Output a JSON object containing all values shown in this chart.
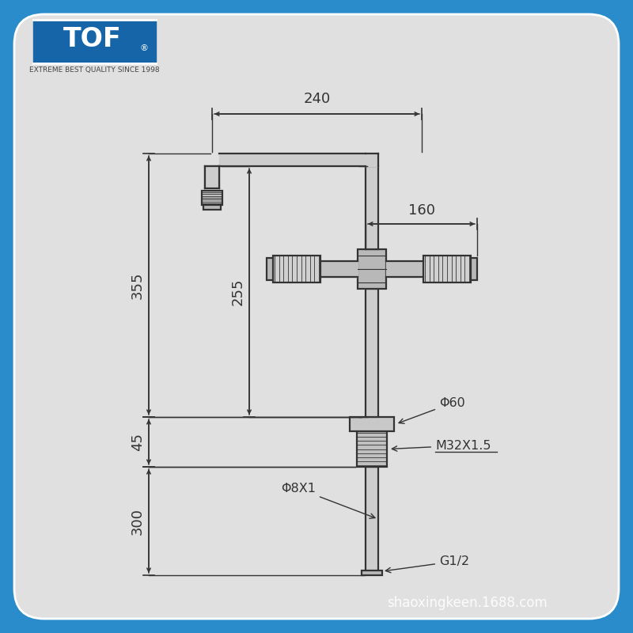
{
  "bg_outer": "#2a8cca",
  "bg_inner": "#e0e0e0",
  "line_color": "#333333",
  "dim_color": "#333333",
  "logo_bg": "#1565a8",
  "logo_sub": "EXTREME BEST QUALITY SINCE 1998",
  "watermark": "shaoxingkeen.1688.com",
  "pipe_fill": "#c8c8c8",
  "pipe_edge": "#333333",
  "dims": {
    "d240": "240",
    "d160": "160",
    "d355": "355",
    "d255": "255",
    "d45": "45",
    "d300": "300",
    "phi60": "Φ60",
    "m32": "M32X1.5",
    "phi8": "Φ8X1",
    "g12": "G1/2"
  }
}
